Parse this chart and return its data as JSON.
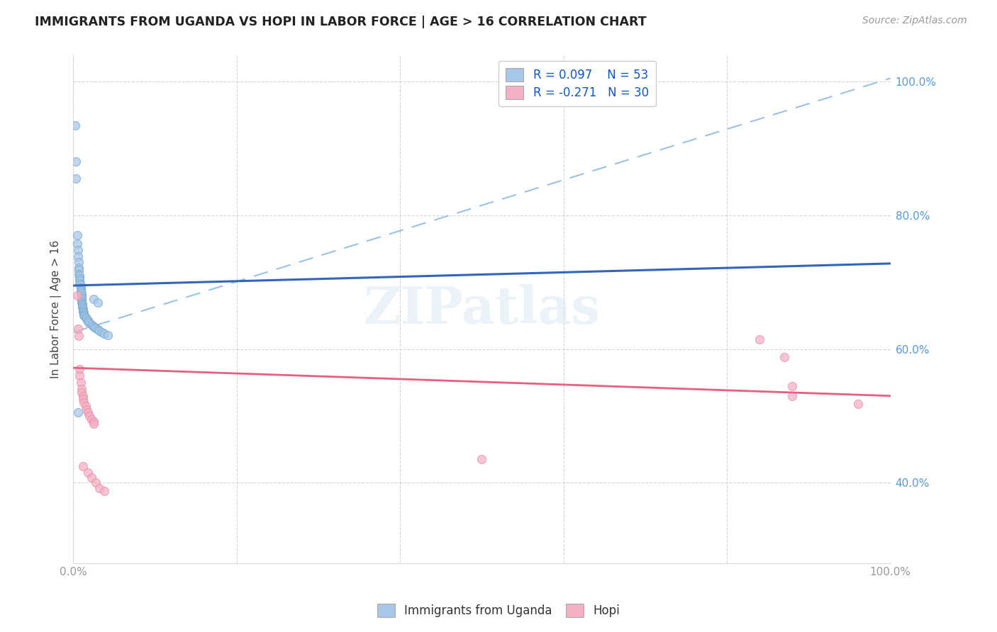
{
  "title": "IMMIGRANTS FROM UGANDA VS HOPI IN LABOR FORCE | AGE > 16 CORRELATION CHART",
  "source": "Source: ZipAtlas.com",
  "ylabel": "In Labor Force | Age > 16",
  "xlim": [
    0.0,
    1.0
  ],
  "ylim": [
    0.28,
    1.04
  ],
  "uganda_color": "#a8c8e8",
  "uganda_edge_color": "#7aaad0",
  "hopi_color": "#f4b0c4",
  "hopi_edge_color": "#e890a8",
  "uganda_line_color": "#3366bb",
  "hopi_line_color": "#e86080",
  "dashed_line_color": "#90bce0",
  "scatter_size": 75,
  "uganda_line_x0": 0.0,
  "uganda_line_y0": 0.695,
  "uganda_line_x1": 1.0,
  "uganda_line_y1": 0.728,
  "hopi_line_x0": 0.0,
  "hopi_line_y0": 0.572,
  "hopi_line_x1": 1.0,
  "hopi_line_y1": 0.53,
  "dashed_line_x0": 0.0,
  "dashed_line_y0": 0.625,
  "dashed_line_x1": 1.0,
  "dashed_line_y1": 1.005,
  "uganda_points": [
    [
      0.002,
      0.935
    ],
    [
      0.003,
      0.88
    ],
    [
      0.003,
      0.855
    ],
    [
      0.005,
      0.77
    ],
    [
      0.005,
      0.758
    ],
    [
      0.006,
      0.748
    ],
    [
      0.006,
      0.738
    ],
    [
      0.007,
      0.73
    ],
    [
      0.007,
      0.722
    ],
    [
      0.007,
      0.718
    ],
    [
      0.007,
      0.712
    ],
    [
      0.008,
      0.71
    ],
    [
      0.008,
      0.706
    ],
    [
      0.008,
      0.702
    ],
    [
      0.008,
      0.698
    ],
    [
      0.009,
      0.696
    ],
    [
      0.009,
      0.692
    ],
    [
      0.009,
      0.688
    ],
    [
      0.009,
      0.685
    ],
    [
      0.01,
      0.683
    ],
    [
      0.01,
      0.68
    ],
    [
      0.01,
      0.677
    ],
    [
      0.01,
      0.675
    ],
    [
      0.01,
      0.672
    ],
    [
      0.01,
      0.67
    ],
    [
      0.011,
      0.668
    ],
    [
      0.011,
      0.666
    ],
    [
      0.011,
      0.664
    ],
    [
      0.011,
      0.662
    ],
    [
      0.012,
      0.66
    ],
    [
      0.012,
      0.658
    ],
    [
      0.012,
      0.656
    ],
    [
      0.013,
      0.655
    ],
    [
      0.013,
      0.653
    ],
    [
      0.013,
      0.651
    ],
    [
      0.014,
      0.649
    ],
    [
      0.015,
      0.647
    ],
    [
      0.016,
      0.645
    ],
    [
      0.018,
      0.643
    ],
    [
      0.018,
      0.641
    ],
    [
      0.02,
      0.639
    ],
    [
      0.022,
      0.637
    ],
    [
      0.024,
      0.635
    ],
    [
      0.026,
      0.633
    ],
    [
      0.028,
      0.631
    ],
    [
      0.03,
      0.629
    ],
    [
      0.032,
      0.627
    ],
    [
      0.035,
      0.625
    ],
    [
      0.038,
      0.623
    ],
    [
      0.042,
      0.621
    ],
    [
      0.025,
      0.675
    ],
    [
      0.03,
      0.67
    ],
    [
      0.006,
      0.505
    ]
  ],
  "hopi_points": [
    [
      0.005,
      0.68
    ],
    [
      0.006,
      0.63
    ],
    [
      0.007,
      0.62
    ],
    [
      0.008,
      0.57
    ],
    [
      0.008,
      0.56
    ],
    [
      0.009,
      0.55
    ],
    [
      0.01,
      0.54
    ],
    [
      0.01,
      0.535
    ],
    [
      0.012,
      0.53
    ],
    [
      0.012,
      0.525
    ],
    [
      0.013,
      0.52
    ],
    [
      0.015,
      0.515
    ],
    [
      0.016,
      0.51
    ],
    [
      0.018,
      0.505
    ],
    [
      0.02,
      0.5
    ],
    [
      0.022,
      0.495
    ],
    [
      0.025,
      0.492
    ],
    [
      0.025,
      0.488
    ],
    [
      0.012,
      0.425
    ],
    [
      0.018,
      0.415
    ],
    [
      0.022,
      0.408
    ],
    [
      0.028,
      0.4
    ],
    [
      0.032,
      0.392
    ],
    [
      0.038,
      0.388
    ],
    [
      0.5,
      0.435
    ],
    [
      0.84,
      0.615
    ],
    [
      0.87,
      0.588
    ],
    [
      0.88,
      0.545
    ],
    [
      0.88,
      0.53
    ],
    [
      0.96,
      0.518
    ]
  ]
}
